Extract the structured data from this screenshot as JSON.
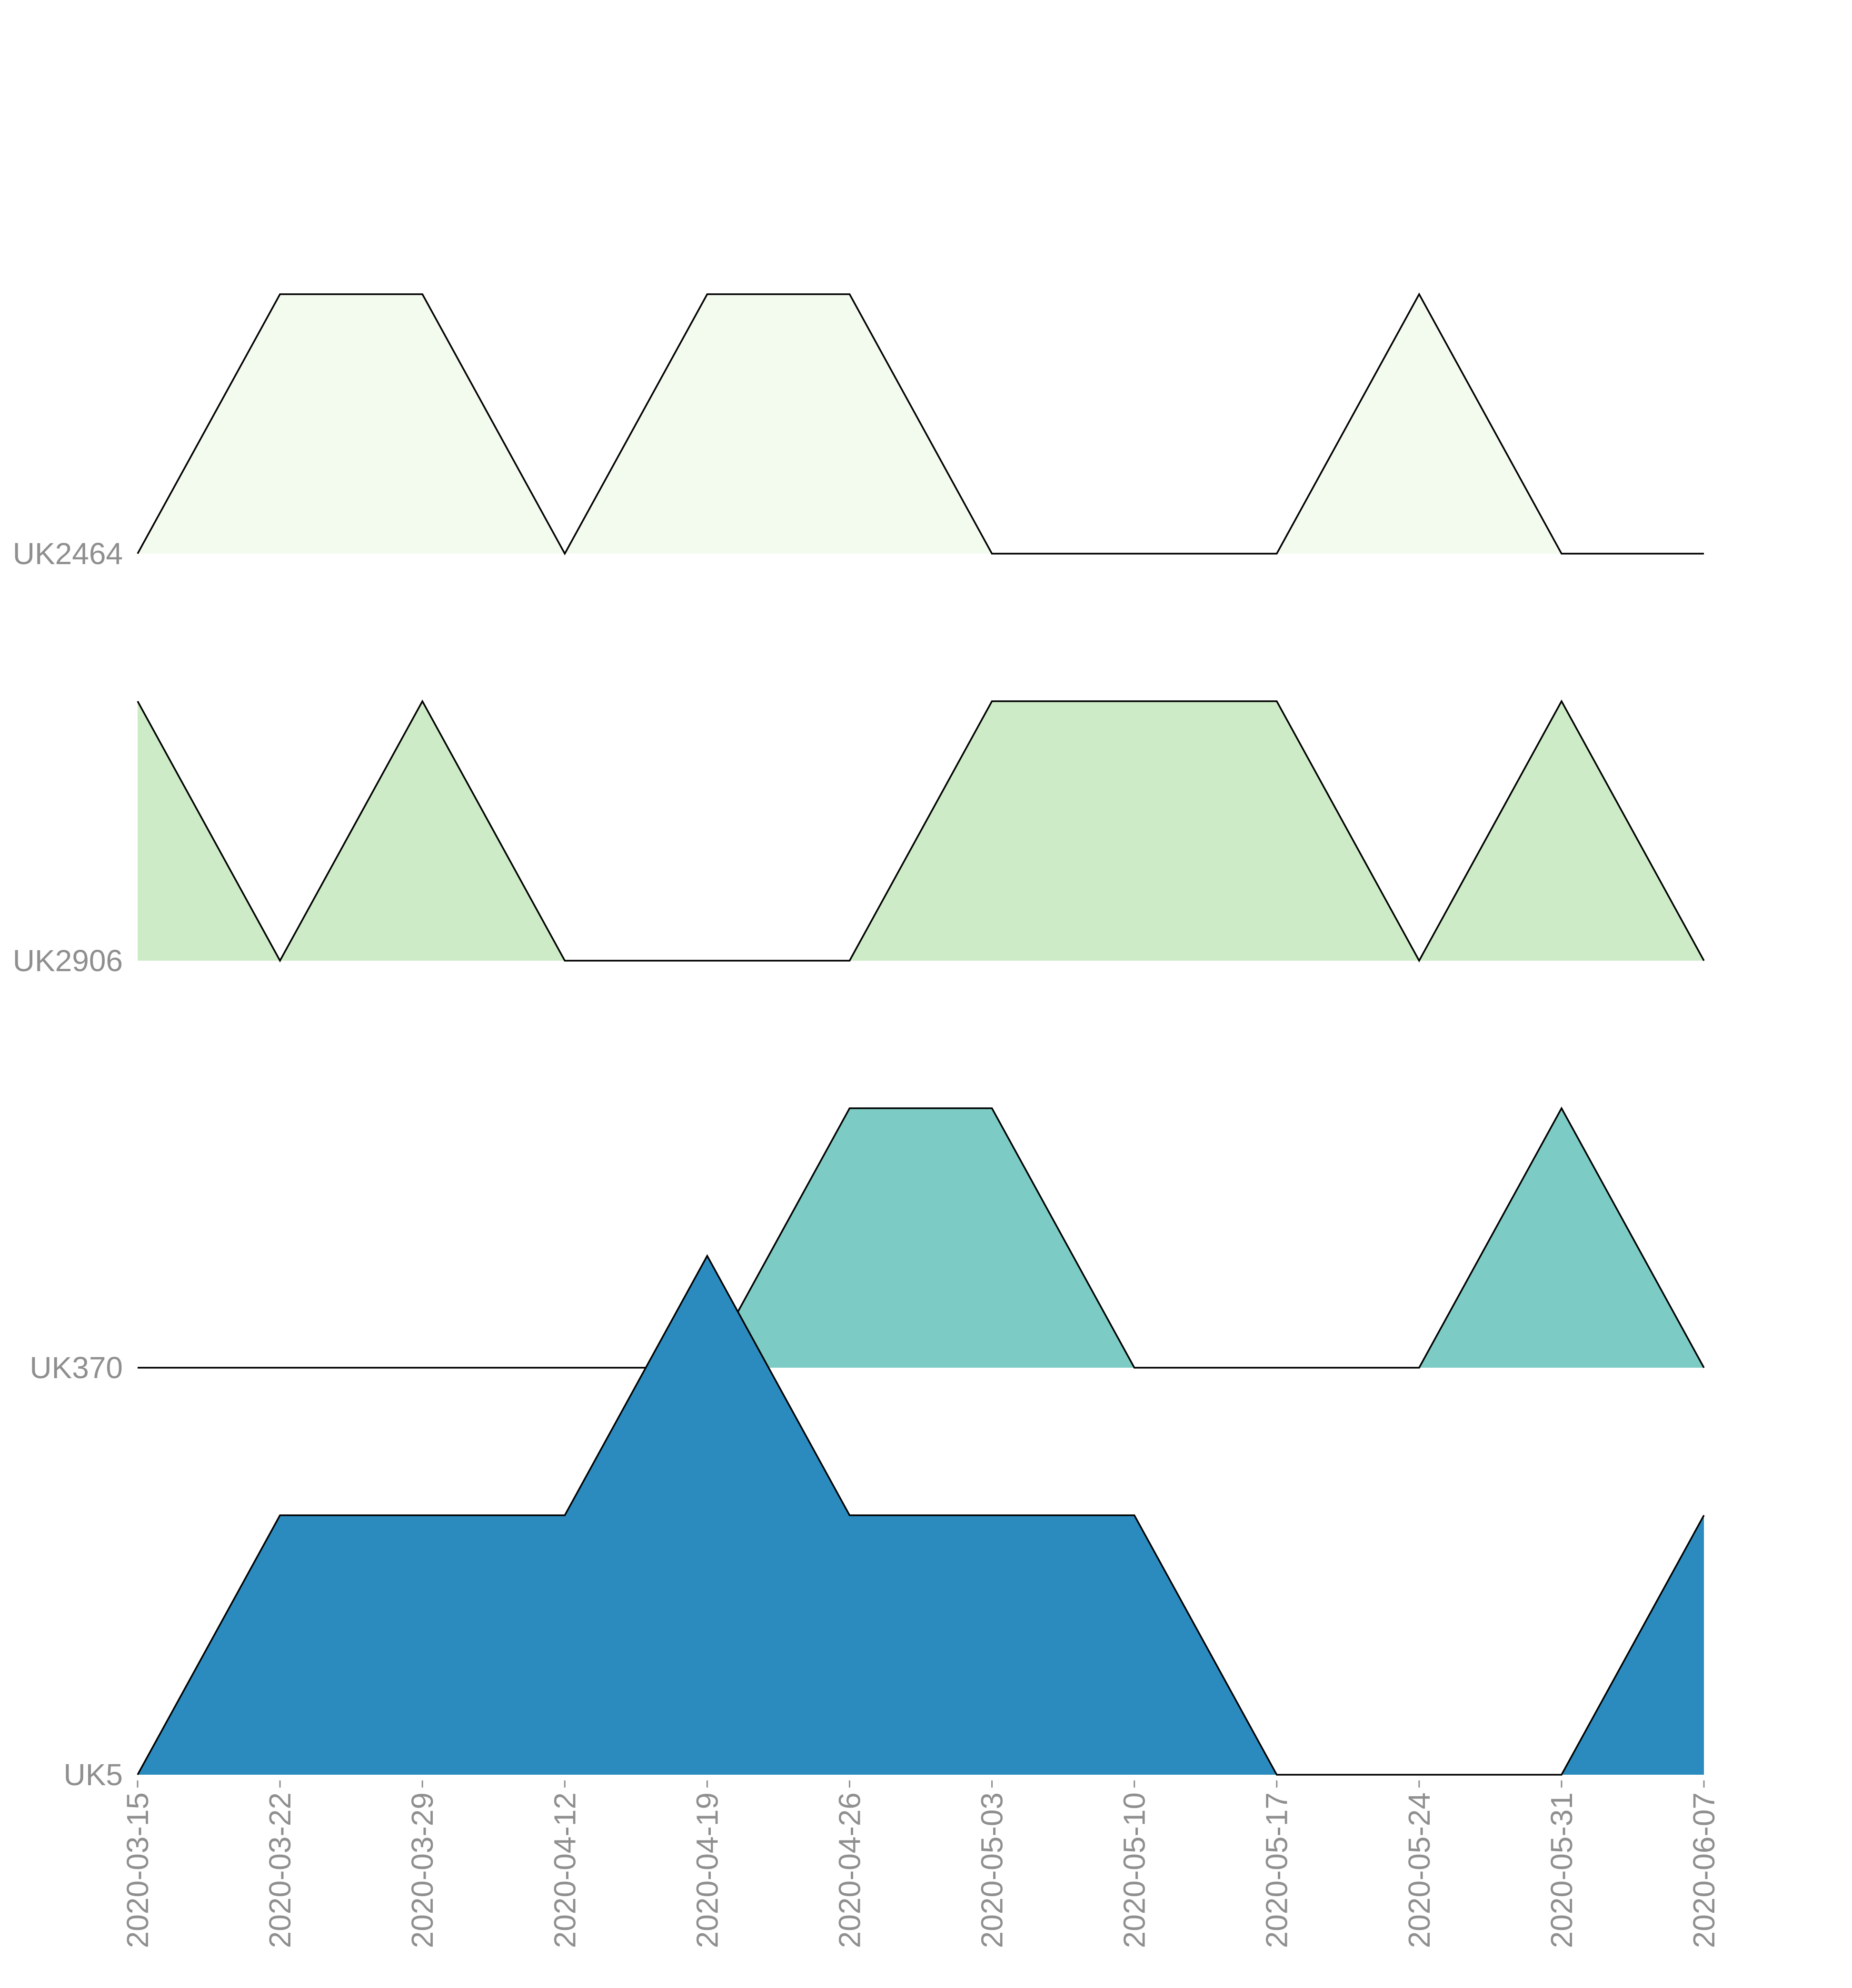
{
  "chart_data": {
    "type": "area",
    "subtype": "ridgeline",
    "title": "",
    "xlabel": "",
    "ylabel": "",
    "x": [
      "2020-03-15",
      "2020-03-22",
      "2020-03-29",
      "2020-04-12",
      "2020-04-19",
      "2020-04-26",
      "2020-05-03",
      "2020-05-10",
      "2020-05-17",
      "2020-05-24",
      "2020-05-31",
      "2020-06-07"
    ],
    "series": [
      {
        "name": "UK2464",
        "color": "#f3faee",
        "values": [
          0,
          1,
          1,
          0,
          1,
          1,
          0,
          0,
          0,
          1,
          0,
          0
        ]
      },
      {
        "name": "UK2906",
        "color": "#ccebc6",
        "values": [
          1,
          0,
          1,
          0,
          0,
          0,
          1,
          1,
          1,
          0,
          1,
          0
        ]
      },
      {
        "name": "UK370",
        "color": "#7ccbc4",
        "values": [
          0,
          0,
          0,
          0,
          0,
          1,
          1,
          0,
          0,
          0,
          1,
          0
        ]
      },
      {
        "name": "UK5",
        "color": "#2b8bbe",
        "values": [
          0,
          1,
          1,
          1,
          2,
          1,
          1,
          1,
          0,
          0,
          0,
          1
        ]
      }
    ],
    "legend": "none",
    "grid": false
  }
}
